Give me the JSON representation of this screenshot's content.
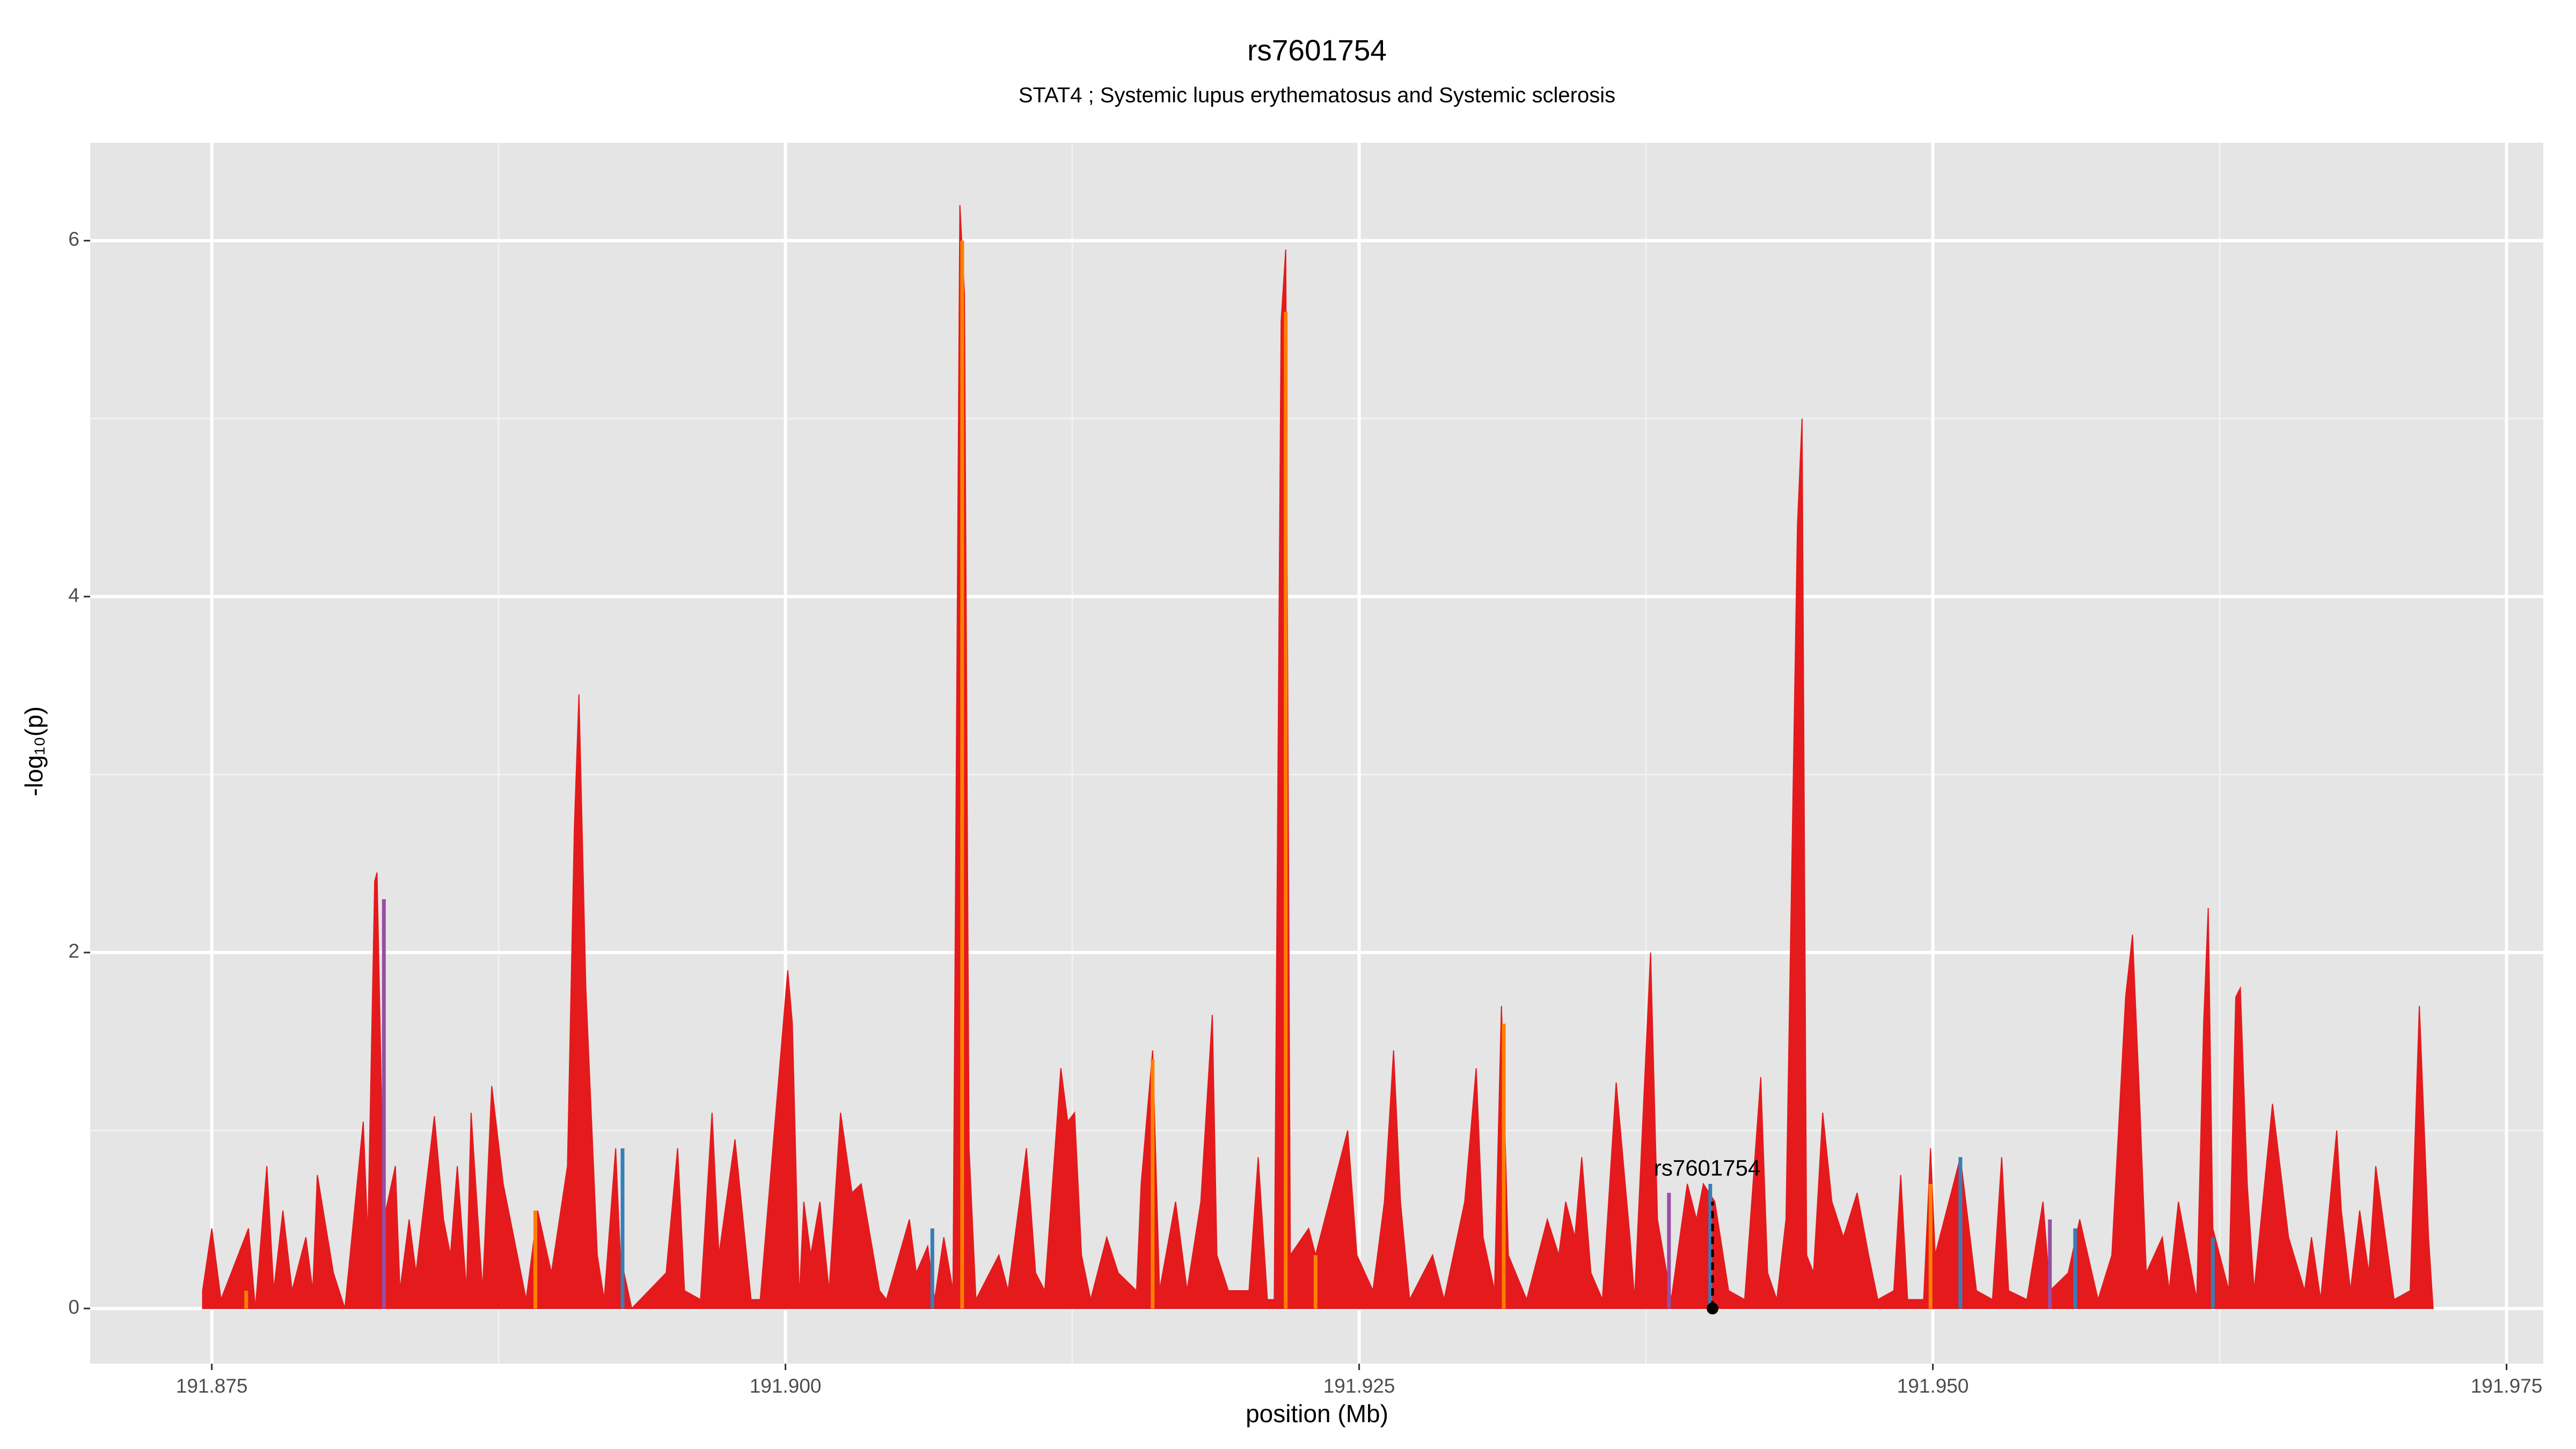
{
  "chart_data": {
    "type": "area",
    "title": "rs7601754",
    "subtitle": "STAT4 ; Systemic lupus erythematosus and Systemic sclerosis",
    "x_label": "position (Mb)",
    "y_label": "-log₁₀(p)",
    "xlim": [
      191.8697,
      191.9766
    ],
    "ylim": [
      -0.31,
      6.55
    ],
    "xticks": [
      191.875,
      {
        "value": 191.9,
        "label": "191.900"
      },
      191.925,
      {
        "value": 191.95,
        "label": "191.950"
      },
      191.975
    ],
    "yticks": [
      0,
      2,
      4,
      6
    ],
    "grid": true,
    "series": [
      {
        "type": "area",
        "color": "#e41a1c",
        "x": [
          191.8746,
          191.875,
          191.8754,
          191.8766,
          191.8769,
          191.8774,
          191.8777,
          191.8781,
          191.8785,
          191.8791,
          191.8794,
          191.8796,
          191.8803,
          191.8808,
          191.8816,
          191.8818,
          191.8821,
          191.8822,
          191.8825,
          191.883,
          191.8832,
          191.8836,
          191.8839,
          191.8847,
          191.8851,
          191.8854,
          191.8857,
          191.8861,
          191.8863,
          191.8868,
          191.8872,
          191.8877,
          191.8887,
          191.8892,
          191.8898,
          191.8905,
          191.8908,
          191.891,
          191.8913,
          191.8918,
          191.8921,
          191.8926,
          191.8928,
          191.8933,
          191.8948,
          191.8953,
          191.8956,
          191.8963,
          191.8968,
          191.8971,
          191.8978,
          191.8985,
          191.8989,
          191.9001,
          191.9003,
          191.9006,
          191.9008,
          191.9011,
          191.9015,
          191.9019,
          191.9024,
          191.9029,
          191.9033,
          191.9041,
          191.9044,
          191.9054,
          191.9057,
          191.9062,
          191.9065,
          191.9069,
          191.9073,
          191.9076,
          191.9078,
          191.908,
          191.9083,
          191.9093,
          191.9097,
          191.9105,
          191.9109,
          191.9113,
          191.912,
          191.9123,
          191.9126,
          191.9129,
          191.9133,
          191.914,
          191.9145,
          191.9153,
          191.9155,
          191.916,
          191.9163,
          191.917,
          191.9175,
          191.9181,
          191.9186,
          191.9188,
          191.9193,
          191.9202,
          191.9206,
          191.921,
          191.9213,
          191.9216,
          191.9218,
          191.922,
          191.9228,
          191.9231,
          191.9239,
          191.9245,
          191.9249,
          191.9256,
          191.9261,
          191.9265,
          191.9268,
          191.9272,
          191.9282,
          191.9287,
          191.9296,
          191.9301,
          191.9304,
          191.9309,
          191.9312,
          191.9315,
          191.9323,
          191.9332,
          191.9337,
          191.934,
          191.9344,
          191.9347,
          191.9351,
          191.9356,
          191.9362,
          191.9368,
          191.937,
          191.9377,
          191.938,
          191.9386,
          191.9393,
          191.9397,
          191.94,
          191.9405,
          191.9411,
          191.9418,
          191.9425,
          191.9428,
          191.9432,
          191.9436,
          191.9441,
          191.9443,
          191.9445,
          191.9448,
          191.9452,
          191.9456,
          191.9461,
          191.9467,
          191.9472,
          191.9476,
          191.9483,
          191.9486,
          191.9489,
          191.9496,
          191.9499,
          191.9501,
          191.9512,
          191.9519,
          191.9526,
          191.953,
          191.9533,
          191.9541,
          191.9548,
          191.9551,
          191.9559,
          191.9564,
          191.9572,
          191.9578,
          191.9584,
          191.9587,
          191.959,
          191.9593,
          191.96,
          191.9603,
          191.9607,
          191.9615,
          191.9618,
          191.962,
          191.9622,
          191.9629,
          191.9632,
          191.9634,
          191.9637,
          191.964,
          191.9648,
          191.9655,
          191.9662,
          191.9665,
          191.9669,
          191.9676,
          191.9678,
          191.9682,
          191.9686,
          191.969,
          191.9693,
          191.9701,
          191.9708,
          191.9712,
          191.9716,
          191.9718
        ],
        "values": [
          0.1,
          0.45,
          0.05,
          0.45,
          0,
          0.8,
          0.1,
          0.55,
          0.1,
          0.4,
          0.1,
          0.75,
          0.2,
          0,
          1.05,
          0.4,
          2.4,
          2.45,
          0.5,
          0.8,
          0.1,
          0.5,
          0.2,
          1.08,
          0.5,
          0.3,
          0.8,
          0.1,
          1.1,
          0.1,
          1.25,
          0.7,
          0.05,
          0.55,
          0.2,
          0.8,
          2.7,
          3.45,
          1.8,
          0.3,
          0.05,
          0.9,
          0.3,
          0,
          0.2,
          0.9,
          0.1,
          0.05,
          1.1,
          0.3,
          0.95,
          0.05,
          0.05,
          1.9,
          1.6,
          0.05,
          0.6,
          0.3,
          0.6,
          0.1,
          1.1,
          0.65,
          0.7,
          0.1,
          0.05,
          0.5,
          0.2,
          0.35,
          0.05,
          0.4,
          0.1,
          6.2,
          5.7,
          0.9,
          0.05,
          0.3,
          0.1,
          0.9,
          0.2,
          0.1,
          1.35,
          1.05,
          1.1,
          0.3,
          0.05,
          0.4,
          0.2,
          0.1,
          0.7,
          1.45,
          0.1,
          0.6,
          0.1,
          0.6,
          1.65,
          0.3,
          0.1,
          0.1,
          0.85,
          0.05,
          0.05,
          5.55,
          5.95,
          0.3,
          0.45,
          0.3,
          0.7,
          1.0,
          0.3,
          0.1,
          0.6,
          1.45,
          0.6,
          0.05,
          0.3,
          0.05,
          0.6,
          1.35,
          0.4,
          0.1,
          1.7,
          0.3,
          0.05,
          0.5,
          0.3,
          0.6,
          0.4,
          0.85,
          0.2,
          0.05,
          1.27,
          0.4,
          0.05,
          2.0,
          0.5,
          0.05,
          0.7,
          0.5,
          0.7,
          0.6,
          0.1,
          0.05,
          1.3,
          0.2,
          0.05,
          0.5,
          4.4,
          5.0,
          0.3,
          0.2,
          1.1,
          0.6,
          0.4,
          0.65,
          0.3,
          0.05,
          0.1,
          0.75,
          0.05,
          0.05,
          0.9,
          0.3,
          0.85,
          0.1,
          0.05,
          0.85,
          0.1,
          0.05,
          0.6,
          0.1,
          0.2,
          0.5,
          0.05,
          0.3,
          1.75,
          2.1,
          1.2,
          0.2,
          0.4,
          0.1,
          0.6,
          0.05,
          1.6,
          2.25,
          0.45,
          0.1,
          1.75,
          1.8,
          0.7,
          0.1,
          1.15,
          0.4,
          0.1,
          0.4,
          0.05,
          1.0,
          0.55,
          0.1,
          0.55,
          0.2,
          0.8,
          0.05,
          0.1,
          1.7,
          0.4,
          0
        ]
      },
      {
        "type": "spike",
        "color": "#ff7f00",
        "x": [
          191.8765,
          191.8891,
          191.9077,
          191.916,
          191.9218,
          191.9231,
          191.9313,
          191.9499
        ],
        "values": [
          0.1,
          0.55,
          6.0,
          1.4,
          5.6,
          0.3,
          1.6,
          0.7
        ]
      },
      {
        "type": "spike",
        "color": "#377eb8",
        "x": [
          191.8929,
          191.9064,
          191.9403,
          191.9512,
          191.9562,
          191.9622
        ],
        "values": [
          0.9,
          0.45,
          0.7,
          0.85,
          0.45,
          0.4
        ]
      },
      {
        "type": "spike",
        "color": "#984ea3",
        "x": [
          191.8825,
          191.9385,
          191.9551
        ],
        "values": [
          2.3,
          0.65,
          0.5
        ]
      }
    ],
    "highlight": {
      "label": "rs7601754",
      "x": 191.9404,
      "y": 0.6
    }
  }
}
